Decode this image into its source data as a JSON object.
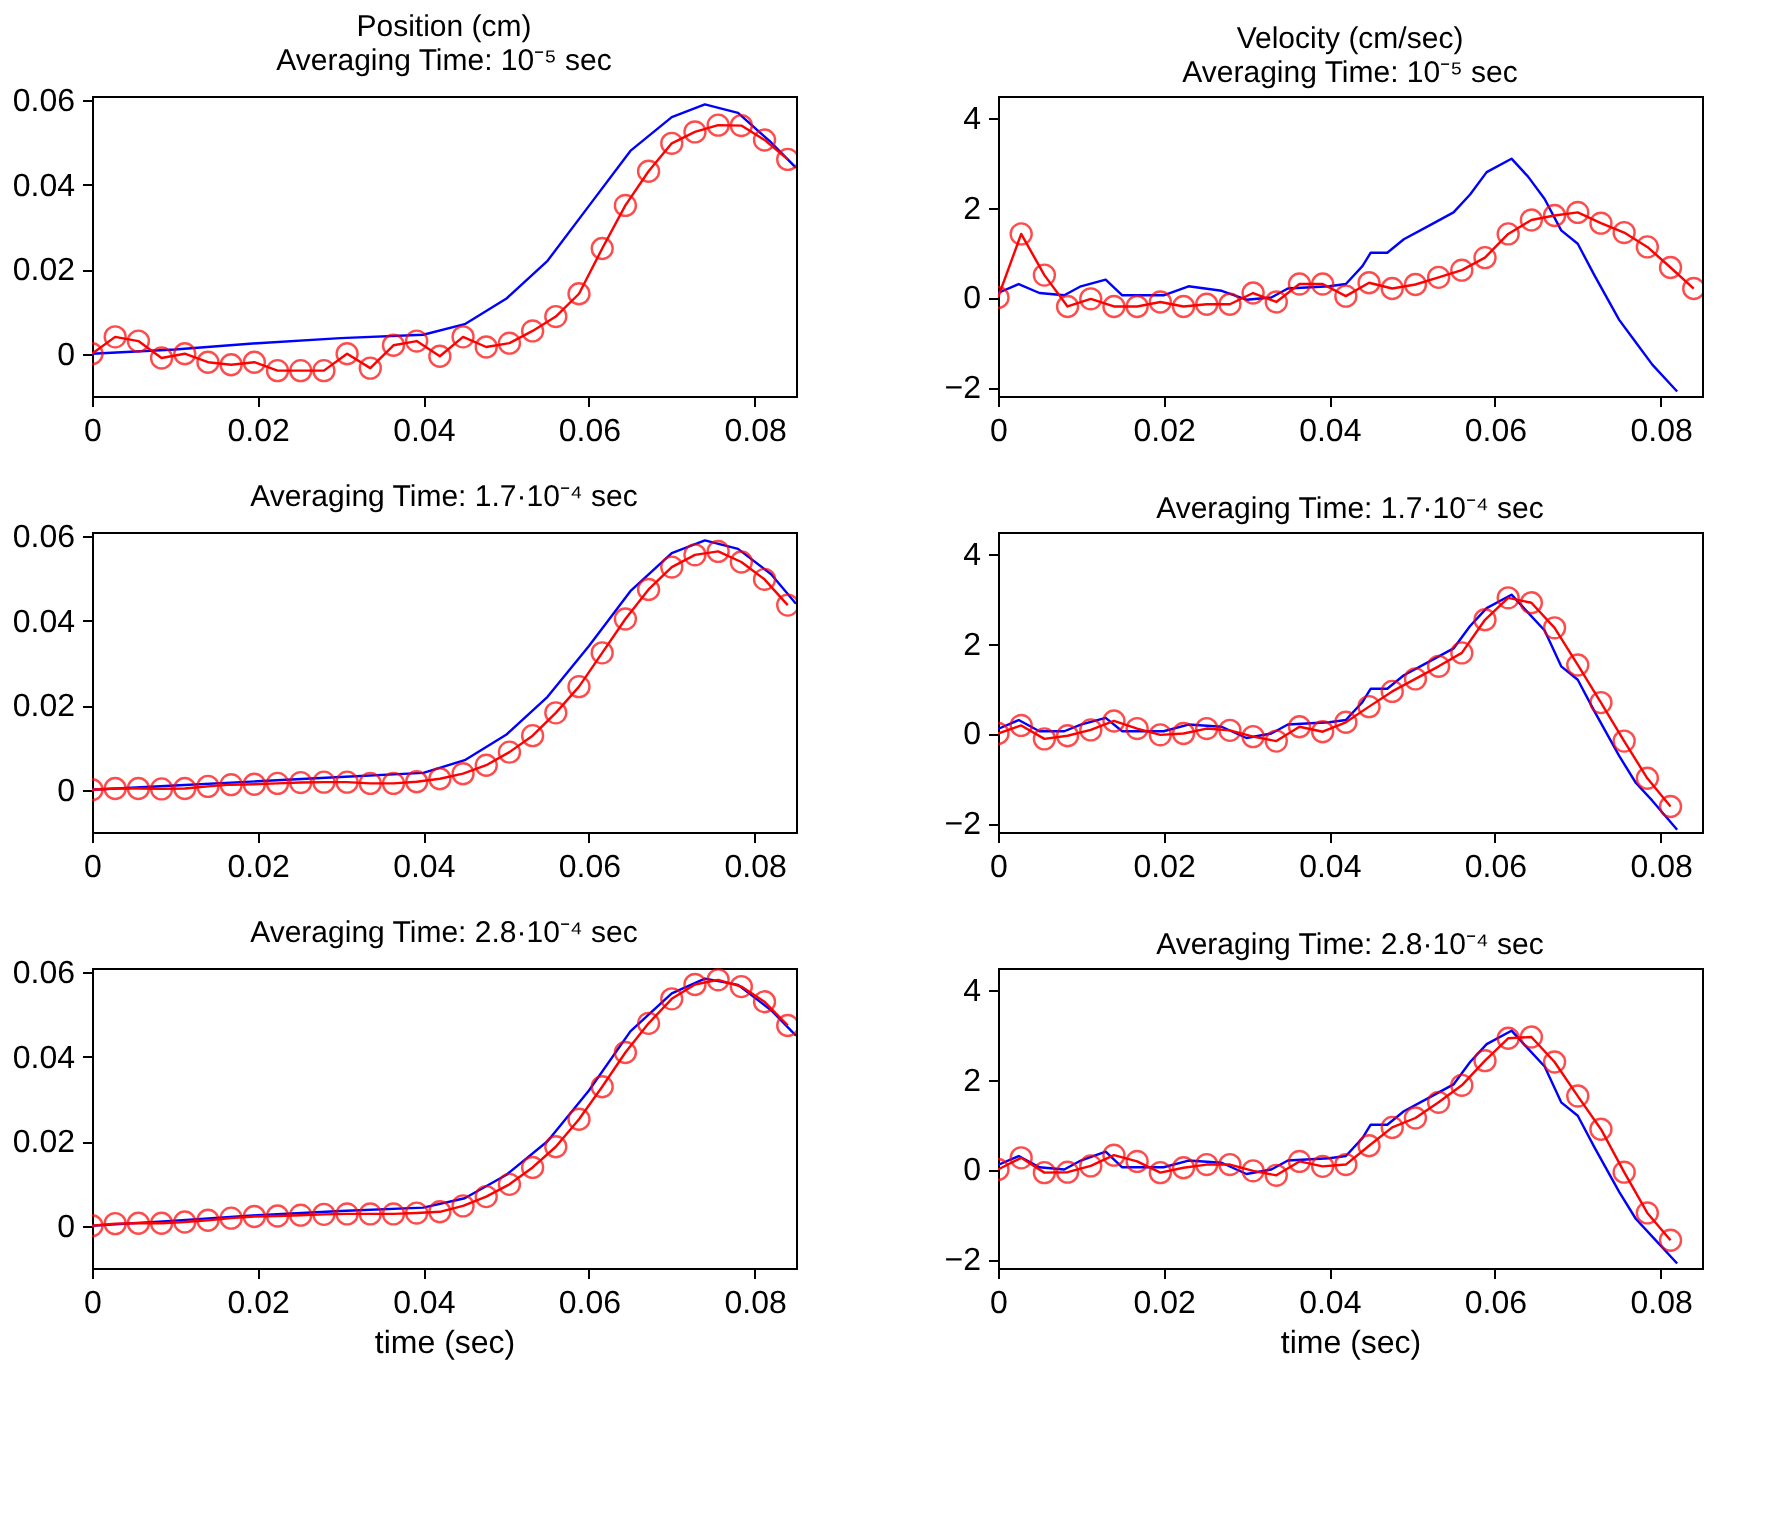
{
  "chart_data": [
    {
      "type": "line",
      "title": "Position (cm)",
      "subtitle": "Averaging Time: 10⁻⁵ sec",
      "xlim": [
        0,
        0.085
      ],
      "xticks": [
        0,
        0.02,
        0.04,
        0.06,
        0.08
      ],
      "ylim": [
        -0.01,
        0.061
      ],
      "yticks": [
        0,
        0.02,
        0.04,
        0.06
      ],
      "grid": false,
      "legend": false,
      "series": [
        {
          "color": "#0000ff",
          "marker": "none",
          "x": [
            0,
            0.01,
            0.02,
            0.03,
            0.04,
            0.045,
            0.05,
            0.055,
            0.06,
            0.065,
            0.07,
            0.074,
            0.078,
            0.082,
            0.085
          ],
          "values": [
            0,
            0.001,
            0.0025,
            0.0037,
            0.0045,
            0.007,
            0.013,
            0.022,
            0.035,
            0.048,
            0.056,
            0.059,
            0.057,
            0.05,
            0.044
          ]
        },
        {
          "color": "#ff0000",
          "marker": "circle",
          "x": [
            0,
            0.0028,
            0.0056,
            0.0084,
            0.0112,
            0.014,
            0.0168,
            0.0196,
            0.0224,
            0.0252,
            0.028,
            0.0308,
            0.0336,
            0.0364,
            0.0392,
            0.042,
            0.0448,
            0.0476,
            0.0504,
            0.0532,
            0.056,
            0.0588,
            0.0616,
            0.0644,
            0.0672,
            0.07,
            0.0728,
            0.0756,
            0.0784,
            0.0812,
            0.084
          ],
          "values": [
            0,
            0.004,
            0.003,
            -0.001,
            0,
            -0.002,
            -0.0026,
            -0.002,
            -0.004,
            -0.004,
            -0.004,
            0,
            -0.0034,
            0.002,
            0.003,
            -0.0006,
            0.004,
            0.0016,
            0.0025,
            0.0054,
            0.0088,
            0.0142,
            0.0249,
            0.0351,
            0.0432,
            0.0498,
            0.0525,
            0.0541,
            0.054,
            0.0506,
            0.046
          ]
        }
      ]
    },
    {
      "type": "line",
      "title": "Velocity (cm/sec)",
      "subtitle": "Averaging Time: 10⁻⁵ sec",
      "xlim": [
        0,
        0.085
      ],
      "xticks": [
        0,
        0.02,
        0.04,
        0.06,
        0.08
      ],
      "ylim": [
        -2.2,
        4.5
      ],
      "yticks": [
        -2,
        0,
        2,
        4
      ],
      "grid": false,
      "legend": false,
      "series": [
        {
          "color": "#0000ff",
          "marker": "none",
          "x": [
            0,
            0.0025,
            0.005,
            0.008,
            0.01,
            0.013,
            0.015,
            0.02,
            0.023,
            0.027,
            0.03,
            0.033,
            0.035,
            0.04,
            0.042,
            0.044,
            0.045,
            0.047,
            0.049,
            0.052,
            0.055,
            0.057,
            0.059,
            0.062,
            0.064,
            0.066,
            0.068,
            0.07,
            0.072,
            0.075,
            0.077,
            0.079,
            0.082
          ],
          "values": [
            0.1,
            0.3,
            0.1,
            0.05,
            0.25,
            0.4,
            0.05,
            0.05,
            0.25,
            0.15,
            -0.05,
            0,
            0.2,
            0.25,
            0.3,
            0.7,
            1.0,
            1.0,
            1.3,
            1.6,
            1.9,
            2.3,
            2.8,
            3.1,
            2.7,
            2.2,
            1.5,
            1.2,
            0.5,
            -0.5,
            -1.0,
            -1.5,
            -2.1
          ]
        },
        {
          "color": "#ff0000",
          "marker": "circle",
          "x": [
            0,
            0.0028,
            0.0056,
            0.0084,
            0.0112,
            0.014,
            0.0168,
            0.0196,
            0.0224,
            0.0252,
            0.028,
            0.0308,
            0.0336,
            0.0364,
            0.0392,
            0.042,
            0.0448,
            0.0476,
            0.0504,
            0.0532,
            0.056,
            0.0588,
            0.0616,
            0.0644,
            0.0672,
            0.07,
            0.0728,
            0.0756,
            0.0784,
            0.0812,
            0.084
          ],
          "values": [
            0,
            1.42,
            0.5,
            -0.2,
            -0.03,
            -0.2,
            -0.2,
            -0.1,
            -0.2,
            -0.15,
            -0.15,
            0.1,
            -0.1,
            0.3,
            0.3,
            0.03,
            0.33,
            0.2,
            0.29,
            0.45,
            0.61,
            0.89,
            1.42,
            1.73,
            1.83,
            1.9,
            1.66,
            1.45,
            1.13,
            0.67,
            0.2
          ]
        }
      ]
    },
    {
      "type": "line",
      "title": "Averaging Time: 1.7·10⁻⁴ sec",
      "xlim": [
        0,
        0.085
      ],
      "xticks": [
        0,
        0.02,
        0.04,
        0.06,
        0.08
      ],
      "ylim": [
        -0.01,
        0.061
      ],
      "yticks": [
        0,
        0.02,
        0.04,
        0.06
      ],
      "grid": false,
      "legend": false,
      "series": [
        {
          "color": "#0000ff",
          "marker": "none",
          "x": [
            0,
            0.01,
            0.02,
            0.03,
            0.04,
            0.045,
            0.05,
            0.055,
            0.06,
            0.065,
            0.07,
            0.074,
            0.078,
            0.082,
            0.085
          ],
          "values": [
            0,
            0.001,
            0.002,
            0.003,
            0.004,
            0.007,
            0.013,
            0.022,
            0.034,
            0.047,
            0.056,
            0.059,
            0.057,
            0.051,
            0.044
          ]
        },
        {
          "color": "#ff0000",
          "marker": "circle",
          "x": [
            0,
            0.0028,
            0.0056,
            0.0084,
            0.0112,
            0.014,
            0.0168,
            0.0196,
            0.0224,
            0.0252,
            0.028,
            0.0308,
            0.0336,
            0.0364,
            0.0392,
            0.042,
            0.0448,
            0.0476,
            0.0504,
            0.0532,
            0.056,
            0.0588,
            0.0616,
            0.0644,
            0.0672,
            0.07,
            0.0728,
            0.0756,
            0.0784,
            0.0812,
            0.084
          ],
          "values": [
            0,
            0.0003,
            0.0003,
            0.0002,
            0.0003,
            0.0008,
            0.0012,
            0.0013,
            0.0015,
            0.0017,
            0.0018,
            0.0018,
            0.0015,
            0.0015,
            0.0019,
            0.0026,
            0.0038,
            0.0058,
            0.0089,
            0.0128,
            0.0182,
            0.0244,
            0.0324,
            0.0404,
            0.0474,
            0.0527,
            0.0556,
            0.0564,
            0.0539,
            0.0498,
            0.0437
          ]
        }
      ]
    },
    {
      "type": "line",
      "title": "Averaging Time: 1.7·10⁻⁴ sec",
      "xlim": [
        0,
        0.085
      ],
      "xticks": [
        0,
        0.02,
        0.04,
        0.06,
        0.08
      ],
      "ylim": [
        -2.2,
        4.5
      ],
      "yticks": [
        -2,
        0,
        2,
        4
      ],
      "grid": false,
      "legend": false,
      "series": [
        {
          "color": "#0000ff",
          "marker": "none",
          "x": [
            0,
            0.0025,
            0.005,
            0.008,
            0.01,
            0.013,
            0.015,
            0.02,
            0.023,
            0.027,
            0.03,
            0.033,
            0.035,
            0.04,
            0.042,
            0.044,
            0.045,
            0.047,
            0.049,
            0.052,
            0.055,
            0.057,
            0.059,
            0.062,
            0.064,
            0.066,
            0.068,
            0.07,
            0.072,
            0.075,
            0.077,
            0.079,
            0.082
          ],
          "values": [
            0.1,
            0.3,
            0.05,
            0.05,
            0.2,
            0.35,
            0.05,
            0.05,
            0.2,
            0.15,
            -0.1,
            0,
            0.2,
            0.25,
            0.3,
            0.7,
            1.0,
            1.0,
            1.3,
            1.6,
            1.9,
            2.4,
            2.8,
            3.1,
            2.7,
            2.3,
            1.5,
            1.2,
            0.5,
            -0.5,
            -1.1,
            -1.5,
            -2.15
          ]
        },
        {
          "color": "#ff0000",
          "marker": "circle",
          "x": [
            0,
            0.0028,
            0.0056,
            0.0084,
            0.0112,
            0.014,
            0.0168,
            0.0196,
            0.0224,
            0.0252,
            0.028,
            0.0308,
            0.0336,
            0.0364,
            0.0392,
            0.042,
            0.0448,
            0.0476,
            0.0504,
            0.0532,
            0.056,
            0.0588,
            0.0616,
            0.0644,
            0.0672,
            0.07,
            0.0728,
            0.0756,
            0.0784,
            0.0812
          ],
          "values": [
            0,
            0.18,
            -0.12,
            -0.05,
            0.08,
            0.28,
            0.11,
            -0.03,
            0,
            0.11,
            0.07,
            -0.07,
            -0.17,
            0.15,
            0.04,
            0.25,
            0.6,
            0.94,
            1.22,
            1.5,
            1.8,
            2.54,
            3.03,
            2.92,
            2.36,
            1.53,
            0.69,
            -0.17,
            -1.0,
            -1.63
          ]
        }
      ]
    },
    {
      "type": "line",
      "title": "Averaging Time: 2.8·10⁻⁴ sec",
      "xlabel": "time (sec)",
      "xlim": [
        0,
        0.085
      ],
      "xticks": [
        0,
        0.02,
        0.04,
        0.06,
        0.08
      ],
      "ylim": [
        -0.01,
        0.061
      ],
      "yticks": [
        0,
        0.02,
        0.04,
        0.06
      ],
      "grid": false,
      "legend": false,
      "series": [
        {
          "color": "#0000ff",
          "marker": "none",
          "x": [
            0,
            0.01,
            0.02,
            0.03,
            0.04,
            0.045,
            0.05,
            0.055,
            0.06,
            0.065,
            0.07,
            0.074,
            0.078,
            0.082,
            0.085
          ],
          "values": [
            0,
            0.0012,
            0.0025,
            0.0035,
            0.0043,
            0.0065,
            0.012,
            0.02,
            0.032,
            0.046,
            0.055,
            0.0585,
            0.057,
            0.051,
            0.045
          ]
        },
        {
          "color": "#ff0000",
          "marker": "circle",
          "x": [
            0,
            0.0028,
            0.0056,
            0.0084,
            0.0112,
            0.014,
            0.0168,
            0.0196,
            0.0224,
            0.0252,
            0.028,
            0.0308,
            0.0336,
            0.0364,
            0.0392,
            0.042,
            0.0448,
            0.0476,
            0.0504,
            0.0532,
            0.056,
            0.0588,
            0.0616,
            0.0644,
            0.0672,
            0.07,
            0.0728,
            0.0756,
            0.0784,
            0.0812,
            0.084
          ],
          "values": [
            0,
            0.0005,
            0.0006,
            0.0006,
            0.0009,
            0.0013,
            0.0018,
            0.0022,
            0.0023,
            0.0025,
            0.0027,
            0.0028,
            0.0028,
            0.0028,
            0.003,
            0.0033,
            0.0047,
            0.0069,
            0.0098,
            0.0138,
            0.0187,
            0.0252,
            0.0329,
            0.041,
            0.0479,
            0.0537,
            0.0571,
            0.0582,
            0.0566,
            0.053,
            0.0474
          ]
        }
      ]
    },
    {
      "type": "line",
      "title": "Averaging Time: 2.8·10⁻⁴ sec",
      "xlabel": "time (sec)",
      "xlim": [
        0,
        0.085
      ],
      "xticks": [
        0,
        0.02,
        0.04,
        0.06,
        0.08
      ],
      "ylim": [
        -2.2,
        4.5
      ],
      "yticks": [
        -2,
        0,
        2,
        4
      ],
      "grid": false,
      "legend": false,
      "series": [
        {
          "color": "#0000ff",
          "marker": "none",
          "x": [
            0,
            0.0025,
            0.005,
            0.008,
            0.01,
            0.013,
            0.015,
            0.02,
            0.023,
            0.027,
            0.03,
            0.033,
            0.035,
            0.04,
            0.042,
            0.044,
            0.045,
            0.047,
            0.049,
            0.052,
            0.055,
            0.057,
            0.059,
            0.062,
            0.064,
            0.066,
            0.068,
            0.07,
            0.072,
            0.075,
            0.077,
            0.079,
            0.082
          ],
          "values": [
            0.1,
            0.3,
            0.05,
            0.0,
            0.2,
            0.4,
            0.05,
            0.05,
            0.2,
            0.15,
            -0.1,
            0,
            0.2,
            0.25,
            0.3,
            0.7,
            1.0,
            1.0,
            1.3,
            1.6,
            1.9,
            2.4,
            2.8,
            3.1,
            2.7,
            2.3,
            1.5,
            1.2,
            0.5,
            -0.5,
            -1.1,
            -1.5,
            -2.1
          ]
        },
        {
          "color": "#ff0000",
          "marker": "circle",
          "x": [
            0,
            0.0028,
            0.0056,
            0.0084,
            0.0112,
            0.014,
            0.0168,
            0.0196,
            0.0224,
            0.0252,
            0.028,
            0.0308,
            0.0336,
            0.0364,
            0.0392,
            0.042,
            0.0448,
            0.0476,
            0.0504,
            0.0532,
            0.056,
            0.0588,
            0.0616,
            0.0644,
            0.0672,
            0.07,
            0.0728,
            0.0756,
            0.0784,
            0.0812
          ],
          "values": [
            0,
            0.26,
            -0.07,
            -0.06,
            0.08,
            0.32,
            0.18,
            -0.07,
            0.04,
            0.11,
            0.11,
            -0.03,
            -0.13,
            0.18,
            0.07,
            0.11,
            0.53,
            0.94,
            1.15,
            1.5,
            1.88,
            2.43,
            2.93,
            2.96,
            2.4,
            1.64,
            0.9,
            -0.06,
            -0.97,
            -1.58
          ]
        }
      ]
    }
  ]
}
